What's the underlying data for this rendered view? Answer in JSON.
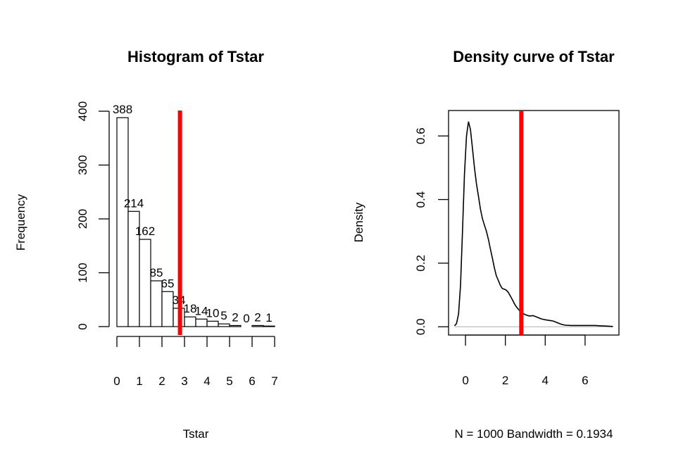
{
  "colors": {
    "marker": "#ff0000",
    "bars": "#ffffff",
    "ink": "#000000",
    "baseline": "#bebebe"
  },
  "chart_data": [
    {
      "type": "bar",
      "title": "Histogram of Tstar",
      "xlabel": "Tstar",
      "ylabel": "Frequency",
      "bin_edges": [
        0,
        0.5,
        1,
        1.5,
        2,
        2.5,
        3,
        3.5,
        4,
        4.5,
        5,
        5.5,
        6,
        6.5,
        7
      ],
      "values": [
        388,
        214,
        162,
        85,
        65,
        34,
        18,
        14,
        10,
        5,
        2,
        0,
        2,
        1
      ],
      "data_labels": [
        "388",
        "214",
        "162",
        "85",
        "65",
        "34",
        "18",
        "14",
        "10",
        "5",
        "2",
        "0",
        "2",
        "1"
      ],
      "xlim": [
        0,
        7
      ],
      "ylim": [
        0,
        400
      ],
      "x_ticks": [
        "0",
        "1",
        "2",
        "3",
        "4",
        "5",
        "6",
        "7"
      ],
      "y_ticks": [
        "0",
        "100",
        "200",
        "300",
        "400"
      ],
      "vline": 2.8,
      "grid": false
    },
    {
      "type": "line",
      "title": "Density curve of Tstar",
      "xlabel": "N = 1000   Bandwidth = 0.1934",
      "ylabel": "Density",
      "x": [
        -0.55,
        -0.45,
        -0.35,
        -0.25,
        -0.15,
        -0.05,
        0.05,
        0.15,
        0.25,
        0.35,
        0.45,
        0.55,
        0.65,
        0.75,
        0.85,
        0.95,
        1.05,
        1.15,
        1.25,
        1.35,
        1.45,
        1.55,
        1.65,
        1.75,
        1.85,
        1.95,
        2.05,
        2.15,
        2.25,
        2.35,
        2.45,
        2.55,
        2.65,
        2.8,
        3.0,
        3.2,
        3.4,
        3.6,
        3.8,
        4.0,
        4.2,
        4.4,
        4.6,
        4.8,
        5.0,
        5.3,
        5.6,
        5.9,
        6.2,
        6.5,
        6.8,
        7.1,
        7.4
      ],
      "y": [
        0.003,
        0.01,
        0.04,
        0.13,
        0.3,
        0.48,
        0.6,
        0.645,
        0.62,
        0.56,
        0.5,
        0.45,
        0.41,
        0.37,
        0.34,
        0.32,
        0.3,
        0.275,
        0.245,
        0.215,
        0.185,
        0.16,
        0.145,
        0.13,
        0.12,
        0.118,
        0.115,
        0.108,
        0.097,
        0.085,
        0.073,
        0.063,
        0.055,
        0.045,
        0.038,
        0.034,
        0.035,
        0.03,
        0.025,
        0.022,
        0.02,
        0.018,
        0.013,
        0.008,
        0.005,
        0.004,
        0.004,
        0.004,
        0.004,
        0.004,
        0.003,
        0.002,
        0.001
      ],
      "xlim": [
        -0.85,
        7.7
      ],
      "ylim": [
        -0.026,
        0.68
      ],
      "x_ticks": [
        0,
        2,
        4,
        6
      ],
      "y_ticks": [
        0.0,
        0.2,
        0.4,
        0.6
      ],
      "x_tick_labels": [
        "0",
        "2",
        "4",
        "6"
      ],
      "y_tick_labels": [
        "0.0",
        "0.2",
        "0.4",
        "0.6"
      ],
      "vline": 2.8,
      "grid": false
    }
  ]
}
